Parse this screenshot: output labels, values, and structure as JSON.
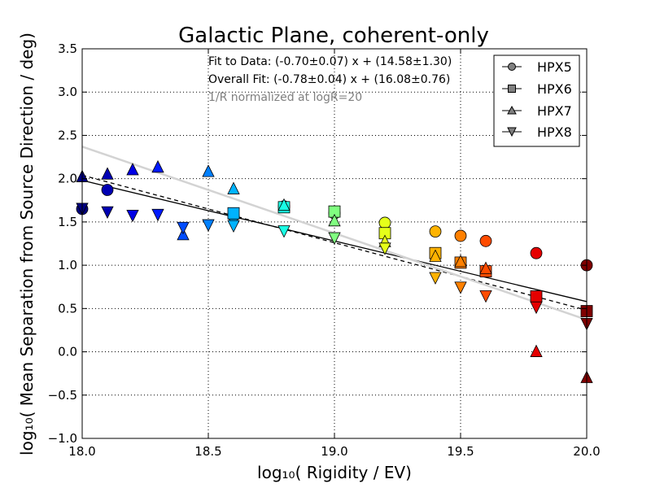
{
  "chart_data": {
    "type": "scatter",
    "title": "Galactic Plane, coherent-only",
    "xlabel": "log₁₀( Rigidity / EV)",
    "ylabel": "log₁₀( Mean Separation from Source Direction / deg)",
    "xlim": [
      18.0,
      20.0
    ],
    "ylim": [
      -1.0,
      3.5
    ],
    "xticks": [
      18.0,
      18.5,
      19.0,
      19.5,
      20.0
    ],
    "xtick_labels": [
      "18.0",
      "18.5",
      "19.0",
      "19.5",
      "20.0"
    ],
    "yticks": [
      -1.0,
      -0.5,
      0.0,
      0.5,
      1.0,
      1.5,
      2.0,
      2.5,
      3.0,
      3.5
    ],
    "ytick_labels": [
      "−1.0",
      "−0.5",
      "0.0",
      "0.5",
      "1.0",
      "1.5",
      "2.0",
      "2.5",
      "3.0",
      "3.5"
    ],
    "grid": true,
    "annotations": [
      {
        "text": "Fit to Data: (-0.70±0.07) x + (14.58±1.30)",
        "color": "#000000"
      },
      {
        "text": "Overall Fit: (-0.78±0.04) x + (16.08±0.76)",
        "color": "#000000"
      },
      {
        "text": "1/R normalized at logR=20",
        "color": "#808080"
      }
    ],
    "fits": [
      {
        "name": "Fit to Data",
        "slope": -0.7,
        "intercept": 14.58,
        "color": "#000000",
        "style": "solid"
      },
      {
        "name": "Overall Fit",
        "slope": -0.78,
        "intercept": 16.08,
        "color": "#000000",
        "style": "dashed"
      },
      {
        "name": "1/R normalized at logR=20",
        "slope": -1.0,
        "intercept": 20.37,
        "color": "#d3d3d3",
        "style": "solid"
      }
    ],
    "legend": {
      "position": "top-right",
      "entries": [
        {
          "label": "HPX5",
          "marker": "circle"
        },
        {
          "label": "HPX6",
          "marker": "square"
        },
        {
          "label": "HPX7",
          "marker": "triangle-up"
        },
        {
          "label": "HPX8",
          "marker": "triangle-down"
        }
      ]
    },
    "color_scale": "jet over log₁₀ rigidity 18.0–20.0",
    "series": [
      {
        "name": "HPX5",
        "marker": "circle",
        "x": [
          18.0,
          18.1,
          18.6,
          18.8,
          19.0,
          19.2,
          19.4,
          19.5,
          19.6,
          19.8,
          20.0
        ],
        "y": [
          1.65,
          1.87,
          1.57,
          1.68,
          1.6,
          1.49,
          1.39,
          1.34,
          1.28,
          1.14,
          1.0
        ]
      },
      {
        "name": "HPX6",
        "marker": "square",
        "x": [
          18.6,
          18.8,
          19.0,
          19.2,
          19.4,
          19.5,
          19.6,
          19.8,
          20.0
        ],
        "y": [
          1.6,
          1.67,
          1.62,
          1.37,
          1.14,
          1.03,
          0.93,
          0.64,
          0.47
        ]
      },
      {
        "name": "HPX7",
        "marker": "triangle-up",
        "x": [
          18.0,
          18.1,
          18.2,
          18.3,
          18.4,
          18.5,
          18.6,
          18.8,
          19.0,
          19.2,
          19.4,
          19.5,
          19.6,
          19.8,
          20.0
        ],
        "y": [
          2.02,
          2.05,
          2.1,
          2.13,
          1.35,
          2.08,
          1.88,
          1.69,
          1.51,
          1.27,
          1.1,
          1.04,
          0.96,
          0.0,
          -0.3
        ]
      },
      {
        "name": "HPX8",
        "marker": "triangle-down",
        "x": [
          18.0,
          18.1,
          18.2,
          18.3,
          18.4,
          18.5,
          18.6,
          18.8,
          19.0,
          19.2,
          19.4,
          19.5,
          19.6,
          19.8,
          20.0
        ],
        "y": [
          1.66,
          1.62,
          1.58,
          1.59,
          1.44,
          1.47,
          1.46,
          1.4,
          1.32,
          1.2,
          0.86,
          0.75,
          0.65,
          0.52,
          0.33
        ]
      }
    ]
  }
}
